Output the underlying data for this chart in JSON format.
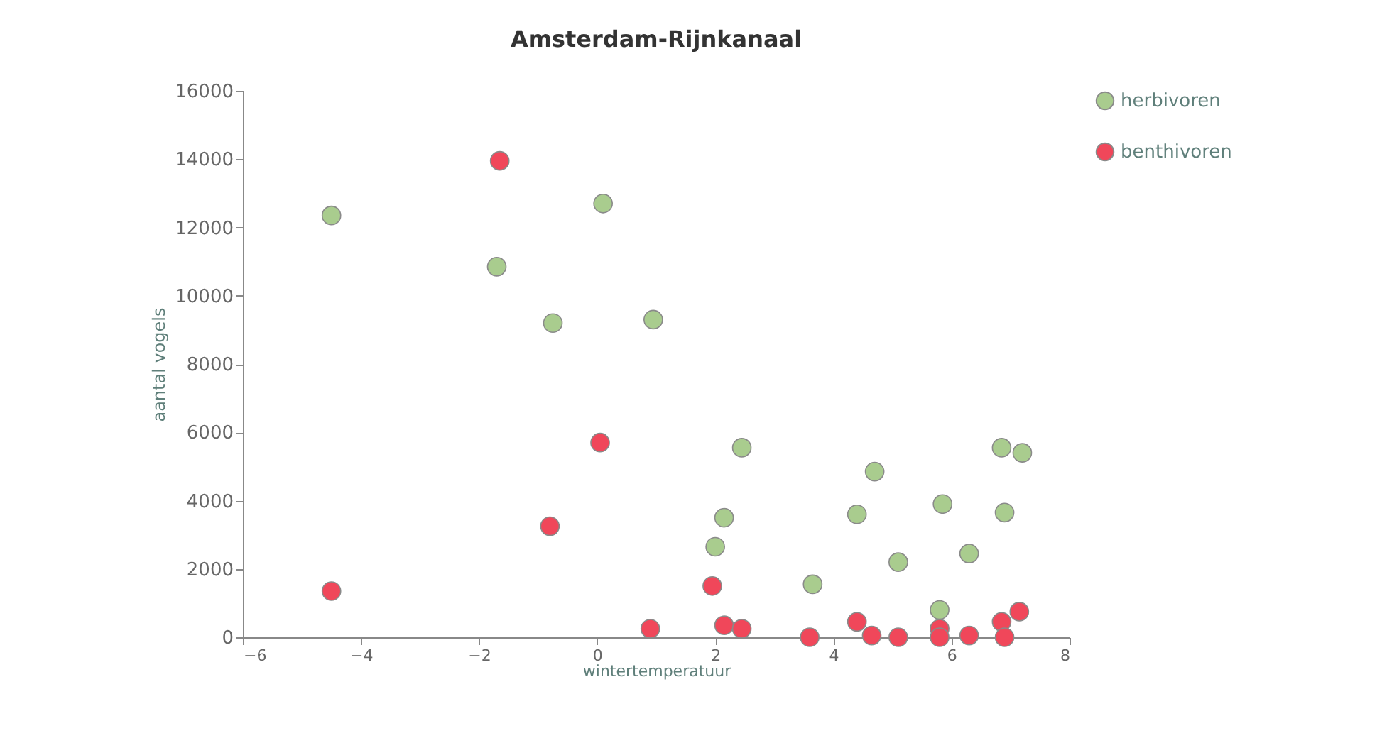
{
  "chart_data": {
    "type": "scatter",
    "title": "Amsterdam-Rijnkanaal",
    "xlabel": "wintertemperatuur",
    "ylabel": "aantal vogels",
    "xlim": [
      -6,
      8
    ],
    "xticks": [
      -6,
      -4,
      -2,
      0,
      2,
      4,
      6,
      8
    ],
    "ylim": [
      0,
      16000
    ],
    "yticks": [
      0,
      2000,
      4000,
      6000,
      8000,
      10000,
      12000,
      14000,
      16000
    ],
    "grid": false,
    "legend": "top right",
    "marker": "circle",
    "series": [
      {
        "name": "herbivoren",
        "color": "#a9cc8e",
        "x": [
          -4.5,
          -1.7,
          -0.75,
          0.1,
          0.95,
          2.0,
          2.15,
          2.45,
          3.65,
          4.4,
          4.7,
          5.1,
          5.85,
          5.8,
          6.3,
          6.85,
          6.9,
          7.2
        ],
        "values": [
          12350,
          10850,
          9200,
          12700,
          9300,
          2650,
          3500,
          5550,
          1550,
          3600,
          4850,
          2200,
          3900,
          800,
          2450,
          5550,
          3650,
          5400
        ]
      },
      {
        "name": "benthivoren",
        "color": "#f0475a",
        "x": [
          -4.5,
          -1.65,
          -0.8,
          0.05,
          0.9,
          1.95,
          2.15,
          2.45,
          3.6,
          4.4,
          4.65,
          5.1,
          5.8,
          5.8,
          6.3,
          6.85,
          6.9,
          7.15
        ],
        "values": [
          1350,
          13950,
          3250,
          5700,
          250,
          1500,
          350,
          250,
          0,
          450,
          50,
          0,
          250,
          0,
          50,
          450,
          0,
          750
        ]
      }
    ]
  }
}
